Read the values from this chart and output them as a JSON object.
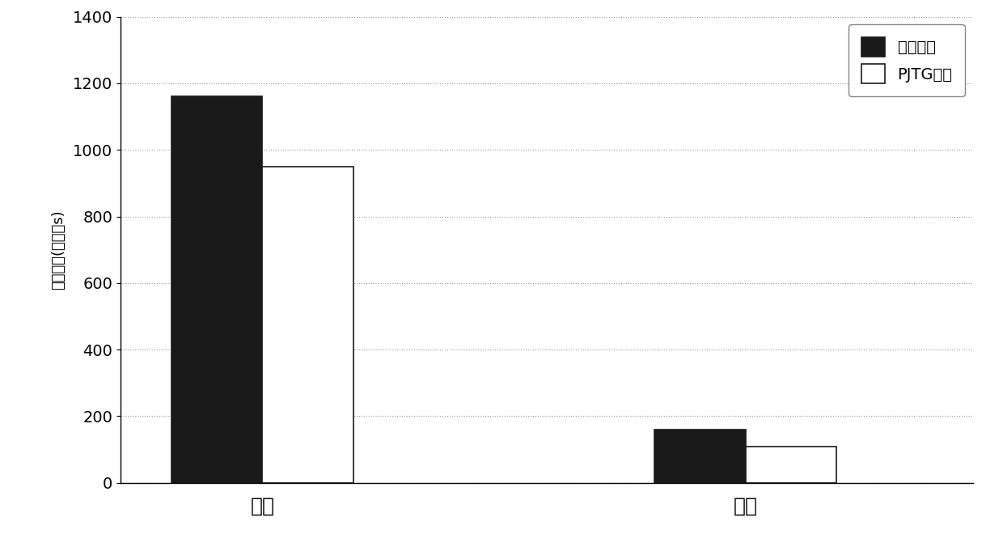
{
  "categories": [
    "单点",
    "集群"
  ],
  "series": [
    {
      "label": "一般算法",
      "values": [
        1160,
        160
      ],
      "facecolor": "#1a1a1a",
      "edgecolor": "#1a1a1a"
    },
    {
      "label": "PJTG算法",
      "values": [
        950,
        110
      ],
      "facecolor": "#ffffff",
      "edgecolor": "#1a1a1a"
    }
  ],
  "ylabel": "响应时间(单位：s)",
  "ylim": [
    0,
    1400
  ],
  "yticks": [
    0,
    200,
    400,
    600,
    800,
    1000,
    1200,
    1400
  ],
  "bar_width": 0.32,
  "group_positions": [
    0.5,
    2.2
  ],
  "xlim": [
    0.0,
    3.0
  ],
  "background_color": "#ffffff",
  "grid_color": "#999999",
  "grid_linestyle": ":",
  "legend_fontsize": 14,
  "ylabel_fontsize": 13,
  "tick_fontsize": 14,
  "xlabel_fontsize": 18
}
